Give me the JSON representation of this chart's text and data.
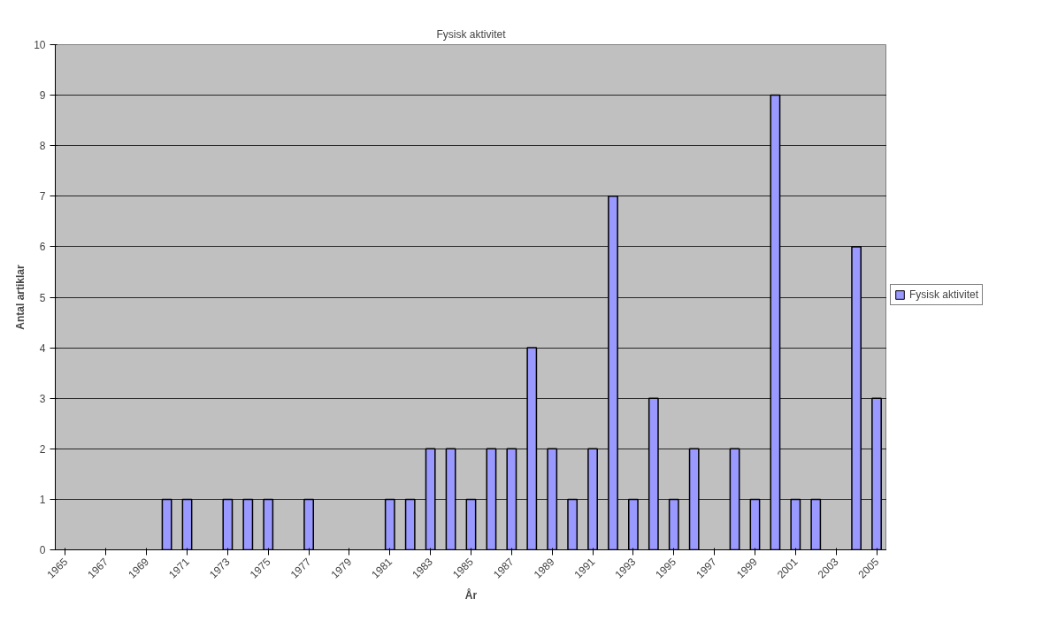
{
  "chart_data": {
    "type": "bar",
    "title": "Fysisk aktivitet",
    "xlabel": "År",
    "ylabel": "Antal artiklar",
    "categories": [
      "1965",
      null,
      "1967",
      null,
      "1969",
      null,
      "1971",
      null,
      "1973",
      null,
      "1975",
      null,
      "1977",
      null,
      "1979",
      null,
      "1981",
      null,
      "1983",
      null,
      "1985",
      null,
      "1987",
      null,
      "1989",
      null,
      "1991",
      null,
      "1993",
      null,
      "1995",
      null,
      "1997",
      null,
      "1999",
      null,
      "2001",
      null,
      "2003",
      null,
      "2005"
    ],
    "series": [
      {
        "name": "Fysisk aktivitet",
        "color": "#9999ff",
        "values": [
          null,
          null,
          null,
          null,
          null,
          1,
          1,
          null,
          1,
          1,
          1,
          null,
          1,
          null,
          null,
          null,
          1,
          1,
          2,
          2,
          1,
          2,
          2,
          4,
          2,
          1,
          2,
          7,
          1,
          3,
          1,
          2,
          null,
          2,
          1,
          9,
          1,
          1,
          null,
          6,
          3
        ]
      }
    ],
    "ylim": [
      0,
      10
    ],
    "yticks": [
      0,
      1,
      2,
      3,
      4,
      5,
      6,
      7,
      8,
      9,
      10
    ],
    "grid": "y",
    "legend": "right"
  }
}
